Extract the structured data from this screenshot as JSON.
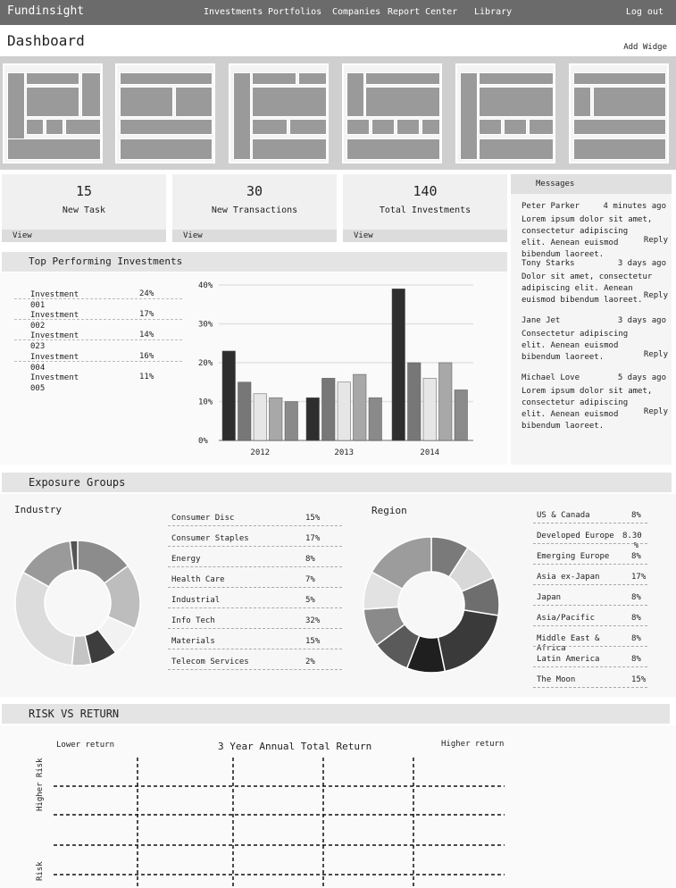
{
  "app": {
    "brand": "Fundinsight",
    "nav": [
      "Investments",
      "Portfolios",
      "Companies",
      "Report Center",
      "Library"
    ],
    "logout": "Log out"
  },
  "page": {
    "title": "Dashboard",
    "add_widget": "Add Widge"
  },
  "stats": [
    {
      "value": "15",
      "label": "New Task",
      "action": "View"
    },
    {
      "value": "30",
      "label": "New Transactions",
      "action": "View"
    },
    {
      "value": "140",
      "label": "Total Investments",
      "action": "View"
    }
  ],
  "messages": {
    "title": "Messages",
    "reply_label": "Reply",
    "items": [
      {
        "from": "Peter Parker",
        "when": "4 minutes ago",
        "body": "Lorem ipsum dolor sit amet, consectetur adipiscing elit. Aenean euismod bibendum laoreet."
      },
      {
        "from": "Tony Starks",
        "when": "3 days ago",
        "body": "Dolor sit amet, consectetur adipiscing elit. Aenean euismod bibendum laoreet."
      },
      {
        "from": "Jane Jet",
        "when": "3 days ago",
        "body": "Consectetur adipiscing elit. Aenean euismod bibendum laoreet."
      },
      {
        "from": "Michael Love",
        "when": "5 days ago",
        "body": "Lorem ipsum dolor sit amet, consectetur adipiscing elit. Aenean euismod bibendum laoreet."
      }
    ]
  },
  "top_performing": {
    "title": "Top Performing Investments",
    "items": [
      {
        "name": "Investment 001",
        "pct": "24%"
      },
      {
        "name": "Investment 002",
        "pct": "17%"
      },
      {
        "name": "Investment 023",
        "pct": "14%"
      },
      {
        "name": "Investment 004",
        "pct": "16%"
      },
      {
        "name": "Investment 005",
        "pct": "11%"
      }
    ]
  },
  "chart_data": [
    {
      "type": "bar",
      "categories": [
        "2012",
        "2013",
        "2014"
      ],
      "series": [
        {
          "values": [
            23,
            11,
            39
          ],
          "color": "#2e2e2e"
        },
        {
          "values": [
            15,
            16,
            20
          ],
          "color": "#777777"
        },
        {
          "values": [
            12,
            15,
            16
          ],
          "color": "#e6e6e6"
        },
        {
          "values": [
            11,
            17,
            20
          ],
          "color": "#a8a8a8"
        },
        {
          "values": [
            10,
            11,
            13
          ],
          "color": "#8a8a8a"
        }
      ],
      "yticks": [
        "0%",
        "10%",
        "20%",
        "30%",
        "40%"
      ],
      "ylim": [
        0,
        40
      ],
      "grid": true
    },
    {
      "type": "pie",
      "title": "Industry",
      "donut": true,
      "categories": [
        "Consumer Disc",
        "Consumer Staples",
        "Energy",
        "Health Care",
        "Industrial",
        "Info Tech",
        "Materials",
        "Telecom Services"
      ],
      "values": [
        15,
        17,
        8,
        7,
        5,
        32,
        15,
        2
      ],
      "colors": [
        "#8c8c8c",
        "#bdbdbd",
        "#f2f2f2",
        "#3d3d3d",
        "#c4c4c4",
        "#dcdcdc",
        "#9a9a9a",
        "#555555"
      ]
    },
    {
      "type": "pie",
      "title": "Region",
      "donut": true,
      "categories": [
        "US & Canada",
        "Developed Europe",
        "Emerging Europe",
        "Asia ex-Japan",
        "Japan",
        "Asia/Pacific",
        "Middle East & Africa",
        "Latin America",
        "The Moon"
      ],
      "values": [
        8,
        8.3,
        8,
        17,
        8,
        8,
        8,
        8,
        15
      ],
      "colors": [
        "#7a7a7a",
        "#d8d8d8",
        "#6e6e6e",
        "#3a3a3a",
        "#1f1f1f",
        "#5a5a5a",
        "#8a8a8a",
        "#e2e2e2",
        "#9c9c9c"
      ]
    }
  ],
  "exposure": {
    "title": "Exposure Groups",
    "industry_title": "Industry",
    "region_title": "Region",
    "industry": [
      {
        "name": "Consumer Disc",
        "pct": "15%"
      },
      {
        "name": "Consumer Staples",
        "pct": "17%"
      },
      {
        "name": "Energy",
        "pct": "8%"
      },
      {
        "name": "Health Care",
        "pct": "7%"
      },
      {
        "name": "Industrial",
        "pct": "5%"
      },
      {
        "name": "Info Tech",
        "pct": "32%"
      },
      {
        "name": "Materials",
        "pct": "15%"
      },
      {
        "name": "Telecom Services",
        "pct": "2%"
      }
    ],
    "region": [
      {
        "name": "US & Canada",
        "pct": "8%"
      },
      {
        "name": "Developed Europe",
        "pct": "8.30 %"
      },
      {
        "name": "Emerging Europe",
        "pct": "8%"
      },
      {
        "name": "Asia ex-Japan",
        "pct": "17%"
      },
      {
        "name": "Japan",
        "pct": "8%"
      },
      {
        "name": "Asia/Pacific",
        "pct": "8%"
      },
      {
        "name": "Middle East & Africa",
        "pct": "8%"
      },
      {
        "name": "Latin America",
        "pct": "8%"
      },
      {
        "name": "The Moon",
        "pct": "15%"
      }
    ]
  },
  "risk_return": {
    "title": "RISK VS RETURN",
    "lower_return": "Lower return",
    "chart_title": "3 Year Annual Total Return",
    "higher_return": "Higher return",
    "higher_risk": "Higher Risk",
    "risk": "Risk"
  }
}
